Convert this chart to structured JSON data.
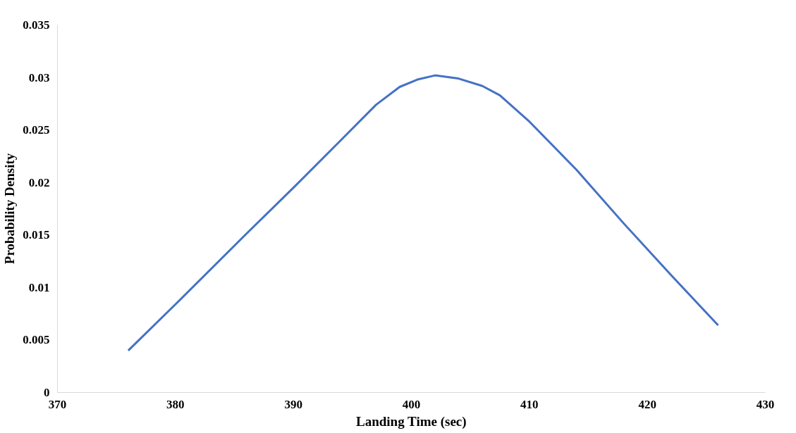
{
  "chart_data": {
    "type": "line",
    "xlabel": "Landing Time (sec)",
    "ylabel": "Probability Density",
    "x": [
      376,
      380,
      386,
      390,
      394,
      397,
      399,
      400.5,
      402,
      404,
      406,
      407.5,
      410,
      414,
      418,
      422,
      426
    ],
    "series": [
      {
        "color": "#4472c4",
        "values": [
          0.004,
          0.0084,
          0.0151,
          0.0195,
          0.024,
          0.0274,
          0.0291,
          0.0298,
          0.0302,
          0.0299,
          0.0292,
          0.0283,
          0.0258,
          0.0212,
          0.0161,
          0.0112,
          0.0064
        ]
      }
    ],
    "xlim": [
      370,
      430
    ],
    "xticks": [
      370,
      380,
      390,
      400,
      410,
      420,
      430
    ],
    "ylim": [
      0,
      0.035
    ],
    "yticks": [
      0,
      0.005,
      0.01,
      0.015,
      0.02,
      0.025,
      0.03,
      0.035
    ],
    "grid": false,
    "marker": "none",
    "line_style": "solid"
  }
}
